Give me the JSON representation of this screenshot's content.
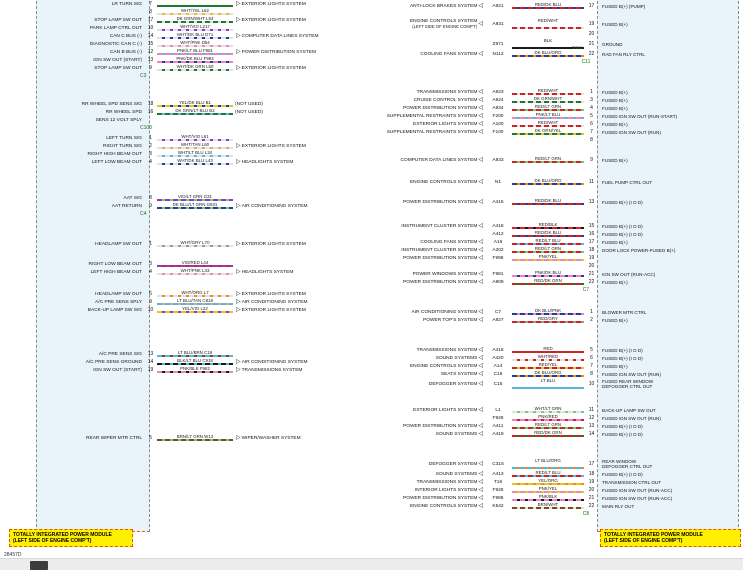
{
  "diagram_number": "28457D",
  "footer_left": {
    "line1": "TOTALLY INTEGRATED POWER MODULE",
    "line2": "(LEFT SIDE OF ENGINE COMP'T)"
  },
  "footer_right": {
    "line1": "TOTALLY INTEGRATED POWER MODULE",
    "line2": "(LEFT SIDE OF ENGINE COMP'T)"
  },
  "colors": {
    "WHT": "#e2e2e2",
    "BLK": "#1a1a1a",
    "RED": "#d42020",
    "DK BLU": "#1f3f9f",
    "LT BLU": "#58b6e0",
    "DK GRN": "#1c7a2e",
    "LT GRN": "#74cf6e",
    "YEL": "#e3c51f",
    "ORG": "#ef8a1d",
    "PNK": "#ef86b5",
    "VIO": "#8d39c9",
    "TAN": "#cdab7a",
    "BRN": "#7c4a1e",
    "GRY": "#9a9a9a",
    "module_bg": "#e9f3fa",
    "callout_bg": "#ffef00",
    "callout_border": "#e05a00",
    "connector_green": "#0a7a0a"
  },
  "left_module": {
    "sections": [
      {
        "gap": 0,
        "connector": "C3",
        "rows": [
          {
            "label": "LR TURN SIG",
            "pin": "7",
            "wire": "",
            "circuit": "",
            "system": "EXTERIOR LIGHTS SYSTEM"
          },
          {
            "label": "",
            "pin": "8",
            "wire": "WHT/YEL",
            "circuit": "L62"
          },
          {
            "label": "STOP LAMP SW OUT",
            "pin": "17",
            "wire": "DK GRN/WHT",
            "circuit": "L53",
            "system": "EXTERIOR LIGHTS SYSTEM"
          },
          {
            "label": "PARK LAMP CTRL OUT",
            "pin": "10",
            "wire": "WHT/VIO",
            "circuit": "L217"
          },
          {
            "label": "CAN C BUS (-)",
            "pin": "14",
            "wire": "WHT/DK BLU",
            "circuit": "D71",
            "system": "COMPUTER DATA LINES SYSTEM"
          },
          {
            "label": "DIAGNOSTIC CAN C (-)",
            "pin": "15",
            "wire": "WHT/PNK",
            "circuit": "D54"
          },
          {
            "label": "CAN B BUS (-)",
            "pin": "12",
            "wire": "PNK/LT BLU",
            "circuit": "F981",
            "system": "POWER DISTRIBUTION SYSTEM"
          },
          {
            "label": "IGN SW OUT (START)",
            "pin": "13",
            "wire": "PNK/DK BLU",
            "circuit": "F984"
          },
          {
            "label": "STOP LAMP SW OUT",
            "pin": "9",
            "wire": "WHT/DK GRN",
            "circuit": "L50",
            "system": "EXTERIOR LIGHTS SYSTEM"
          }
        ]
      },
      {
        "gap": 20,
        "connector": "C103",
        "rows": [
          {
            "label": "RR WHEEL SPD SENS SIG",
            "pin": "18",
            "wire": "YEL/DK BLU",
            "circuit": "B1",
            "note": "(NOT USED)"
          },
          {
            "label": "RR WHEEL SPD",
            "pin": "16",
            "wire": "DK GRN/LT BLU",
            "circuit": "B2",
            "note": "(NOT USED)"
          },
          {
            "label": "SENS 12 VOLT SPLY",
            "pin": "",
            "wire": "",
            "circuit": ""
          }
        ]
      },
      {
        "gap": 2,
        "rows": [
          {
            "label": "LEFT TURN SIG",
            "pin": "1",
            "wire": "WHT/VIO",
            "circuit": "L61"
          },
          {
            "label": "RIGHT TURN SIG",
            "pin": "2",
            "wire": "WHT/TAN",
            "circuit": "L60",
            "system": "EXTERIOR LIGHTS SYSTEM"
          },
          {
            "label": "RIGHT HIGH BEAM OUT",
            "pin": "3",
            "wire": "WHT/LT BLU",
            "circuit": "L34"
          },
          {
            "label": "LEFT LOW BEAM OUT",
            "pin": "4",
            "wire": "WHT/DK BLU",
            "circuit": "L43",
            "system": "HEADLIGHTS SYSTEM"
          }
        ]
      },
      {
        "gap": 28,
        "connector": "C4",
        "rows": [
          {
            "label": "AAT SIG",
            "pin": "8",
            "wire": "VIO/LT GRN",
            "circuit": "G31"
          },
          {
            "label": "AAT RETURN",
            "pin": "9",
            "wire": "DK BLU/LT GRN",
            "circuit": "G931",
            "system": "AIR CONDITIONING SYSTEM"
          }
        ]
      },
      {
        "gap": 22,
        "rows": [
          {
            "label": "HEADLAMP SW OUT",
            "pin": "1",
            "wire": "WHT/GRY",
            "circuit": "L70",
            "system": "EXTERIOR LIGHTS SYSTEM"
          }
        ]
      },
      {
        "gap": 12,
        "rows": [
          {
            "label": "RIGHT LOW BEAM OUT",
            "pin": "3",
            "wire": "VIO/RED",
            "circuit": "L44"
          },
          {
            "label": "LEFT HIGH BEAM OUT",
            "pin": "4",
            "wire": "WHT/PNK",
            "circuit": "L33",
            "system": "HEADLIGHTS SYSTEM"
          }
        ]
      },
      {
        "gap": 14,
        "rows": [
          {
            "label": "HEADLAMP SW OUT",
            "pin": "6",
            "wire": "WHT/ORG",
            "circuit": "L7",
            "system": "EXTERIOR LIGHTS SYSTEM"
          },
          {
            "label": "A/C PRE SENS SPLY",
            "pin": "9",
            "wire": "LT BLU/TAN",
            "circuit": "C818",
            "system": "AIR CONDITIONING SYSTEM"
          },
          {
            "label": "BACK-UP LAMP SW SIG",
            "pin": "10",
            "wire": "YEL/VIO",
            "circuit": "L22",
            "system": "EXTERIOR LIGHTS SYSTEM"
          }
        ]
      },
      {
        "gap": 36,
        "rows": [
          {
            "label": "A/C PRE SENS SIG",
            "pin": "13",
            "wire": "LT BLU/BRN",
            "circuit": "C18"
          },
          {
            "label": "A/C PRE SENS GROUND",
            "pin": "14",
            "wire": "BLK/LT BLU",
            "circuit": "C918",
            "system": "AIR CONDITIONING SYSTEM"
          },
          {
            "label": "IGN SW OUT (START)",
            "pin": "19",
            "wire": "PNK/BLK",
            "circuit": "F982",
            "system": "TRANSMISSIONS SYSTEM"
          }
        ]
      },
      {
        "gap": 60,
        "rows": [
          {
            "label": "REAR WIPER MTR CTRL",
            "pin": "5",
            "wire": "BRN/LT GRN",
            "circuit": "W13",
            "system": "WIPER/WASHER SYSTEM"
          }
        ]
      }
    ]
  },
  "right_module": {
    "sections": [
      {
        "gap": 2,
        "connector": "C11",
        "rows": [
          {
            "system": "ANTI-LOCK BRAKES SYSTEM",
            "circuit": "A921",
            "wire": "RED/DK BLU",
            "pin": "17",
            "label": "FUSED B(+) (PUMP)"
          },
          {},
          {
            "system": "ENGINE CONTROLS SYSTEM",
            "system2": "(LEFT SIDE OF ENGINE COMP'T)",
            "circuit": "A931",
            "wire": "RED/WHT",
            "pin": "19",
            "label": "FUSED B(+)"
          },
          {
            "pin": "20"
          },
          {
            "circuit": "Z971",
            "wire": "BLK",
            "pin": "21",
            "label": "GROUND",
            "note": "G112"
          },
          {
            "system": "COOLING FANS SYSTEM",
            "circuit": "N112",
            "wire": "DK BLU/ORG",
            "pin": "22",
            "label": "RAD FAN RLY CTRL"
          }
        ]
      },
      {
        "gap": 22,
        "rows": [
          {
            "system": "TRANSMISSIONS SYSTEM",
            "circuit": "A923",
            "wire": "RED/WHT",
            "pin": "1",
            "label": "FUSED B(+)"
          },
          {
            "system": "CRUISE CONTROL SYSTEM",
            "circuit": "A924",
            "wire": "DK GRN/WHT",
            "pin": "3",
            "label": "FUSED B(+)"
          },
          {
            "system": "POWER DISTRIBUTION SYSTEM",
            "circuit": "A934",
            "wire": "RED/LT GRN",
            "pin": "4",
            "label": "FUSED B(+)"
          },
          {
            "system": "SUPPLEMENTAL RESTRAINTS SYSTEM",
            "circuit": "F200",
            "wire": "PNK/LT BLU",
            "pin": "5",
            "label": "FUSED IGN SW OUT (RUN-START)"
          },
          {
            "system": "EXTERIOR LIGHTS SYSTEM",
            "circuit": "A100",
            "wire": "RED/WHT",
            "pin": "6",
            "label": "FUSED B(+)"
          },
          {
            "system": "SUPPLEMENTAL RESTRAINTS SYSTEM",
            "circuit": "F100",
            "wire": "DK GRN/YEL",
            "pin": "7",
            "label": "FUSED IGN SW OUT (RUN)"
          },
          {
            "pin": "8"
          }
        ]
      },
      {
        "gap": 12,
        "rows": [
          {
            "system": "COMPUTER DATA LINES SYSTEM",
            "circuit": "A933",
            "wire": "RED/LT GRN",
            "pin": "9",
            "label": "FUSED B(+)"
          }
        ]
      },
      {
        "gap": 14,
        "rows": [
          {
            "system": "ENGINE CONTROLS SYSTEM",
            "circuit": "N1",
            "wire": "DK BLU/ORG",
            "pin": "11",
            "label": "FUEL PUMP CTRL OUT"
          }
        ]
      },
      {
        "gap": 12,
        "rows": [
          {
            "system": "POWER DISTRIBUTION SYSTEM",
            "circuit": "A416",
            "wire": "RED/DK BLU",
            "pin": "13",
            "label": "FUSED B(+) (I O D)"
          }
        ]
      },
      {
        "gap": 16,
        "connector": "C7",
        "rows": [
          {
            "system": "INSTRUMENT CLUSTER SYSTEM",
            "circuit": "A418",
            "wire": "RED/BLK",
            "pin": "15",
            "label": "FUSED B(+) (I O D)"
          },
          {
            "circuit": "A412",
            "wire": "RED/DK BLU",
            "pin": "16",
            "label": "FUSED B(+) (I O D)"
          },
          {
            "system": "COOLING FANS SYSTEM",
            "circuit": "A16",
            "wire": "RED/LT BLU",
            "pin": "17",
            "label": "FUSED B(+)"
          },
          {
            "system": "INSTRUMENT CLUSTER SYSTEM",
            "circuit": "A202",
            "wire": "RED/LT GRN",
            "pin": "18",
            "label": "DOOR LOCK POWER-FUSED B(+)"
          },
          {
            "system": "POWER DISTRIBUTION SYSTEM",
            "circuit": "F998",
            "wire": "PNK/YEL",
            "pin": "19",
            "label": ""
          },
          {
            "pin": "20"
          },
          {
            "system": "POWER WINDOWS SYSTEM",
            "circuit": "F981",
            "wire": "PNK/DK BLU",
            "pin": "21",
            "label": "IGN SW OUT (RUN-ACC)"
          },
          {
            "system": "POWER DISTRIBUTION SYSTEM",
            "circuit": "A909",
            "wire": "RED/DK GRN",
            "pin": "22",
            "label": "FUSED B(+)"
          }
        ]
      },
      {
        "gap": 14,
        "rows": [
          {
            "system": "AIR CONDITIONING SYSTEM",
            "circuit": "C7",
            "wire": "DK BLU/PNK",
            "pin": "1",
            "label": "BLOWER MTR CTRL"
          },
          {
            "system": "POWER TOP'S SYSTEM",
            "circuit": "A927",
            "wire": "RED/GRY",
            "pin": "2",
            "label": "FUSED B(+)"
          }
        ]
      },
      {
        "gap": 22,
        "rows": [
          {
            "system": "TRANSMISSIONS SYSTEM",
            "circuit": "A418",
            "wire": "RED",
            "pin": "5",
            "label": "FUSED B(+) (I O D)"
          },
          {
            "system": "SOUND SYSTEMS",
            "circuit": "A420",
            "wire": "WHT/RED",
            "pin": "6",
            "label": "FUSED B(+) (I O D)"
          },
          {
            "system": "ENGINE CONTROLS SYSTEM",
            "circuit": "A14",
            "wire": "RED/YEL",
            "pin": "7",
            "label": "FUSED B(+)"
          },
          {
            "system": "SEATS SYSTEM",
            "circuit": "C16",
            "wire": "DK BLU/ORG",
            "pin": "8",
            "label": "FUSED IGN SW OUT (RUN)"
          },
          {
            "system": "DEFOGGER SYSTEM",
            "circuit": "C15",
            "wire": "LT BLU",
            "pin": "10",
            "label": "FUSED REAR WINDOW",
            "label2": "DEFOGGER CTRL OUT"
          }
        ]
      },
      {
        "gap": 16,
        "rows": [
          {
            "system": "EXTERIOR LIGHTS SYSTEM",
            "circuit": "L1",
            "wire": "WHT/LT GRN",
            "pin": "11",
            "label": "BACK-UP LAMP SW OUT"
          },
          {
            "circuit": "F929",
            "wire": "PNK/RED",
            "pin": "12",
            "label": "FUSED IGN SW OUT (RUN)"
          },
          {
            "system": "POWER DISTRIBUTION SYSTEM",
            "circuit": "A411",
            "wire": "RED/LT GRN",
            "pin": "13",
            "label": "FUSED B(+) (I O D)"
          },
          {
            "system": "SOUND SYSTEMS",
            "circuit": "A419",
            "wire": "RED/DK GRN",
            "pin": "14",
            "label": "FUSED B(+) (I O D)"
          }
        ]
      },
      {
        "gap": 20,
        "connector": "C8",
        "rows": [
          {
            "system": "DEFOGGER SYSTEM",
            "circuit": "C315",
            "wire": "LT BLU/ORG",
            "pin": "17",
            "label": "REAR WINDOW",
            "label2": "DEFOGGER CTRL OUT"
          },
          {
            "system": "SOUND SYSTEMS",
            "circuit": "A413",
            "wire": "RED/LT BLU",
            "pin": "18",
            "label": "FUSED B(+) (I O D)"
          },
          {
            "system": "TRANSMISSIONS SYSTEM",
            "circuit": "T16",
            "wire": "YEL/ORG",
            "pin": "19",
            "label": "TRANSMISSION CTRL OUT"
          },
          {
            "system": "INTERIOR LIGHTS SYSTEM",
            "circuit": "F926",
            "wire": "PNK/YEL",
            "pin": "20",
            "label": "FUSED IGN SW OUT (RUN-ACC)"
          },
          {
            "system": "POWER DISTRIBUTION SYSTEM",
            "circuit": "F988",
            "wire": "PNK/BLK",
            "pin": "21",
            "label": "FUSED IGN SW OUT (RUN-ACC)"
          },
          {
            "system": "ENGINE CONTROLS SYSTEM",
            "circuit": "K542",
            "wire": "BRN/WHT",
            "pin": "22",
            "label": "MAIN RLY OUT"
          }
        ]
      }
    ]
  }
}
